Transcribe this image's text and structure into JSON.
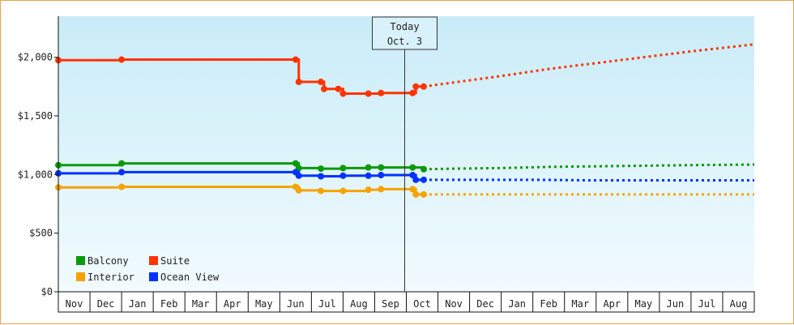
{
  "chart_data": {
    "type": "line",
    "title": "",
    "xlabel": "",
    "ylabel": "",
    "ylim": [
      0,
      2350
    ],
    "y_ticks": [
      0,
      500,
      1000,
      1500,
      2000
    ],
    "y_tick_labels": [
      "$0",
      "$500",
      "$1,000",
      "$1,500",
      "$2,000"
    ],
    "month_labels": [
      "Nov",
      "Dec",
      "Jan",
      "Feb",
      "Mar",
      "Apr",
      "May",
      "Jun",
      "Jul",
      "Aug",
      "Sep",
      "Oct",
      "Nov",
      "Dec",
      "Jan",
      "Feb",
      "Mar",
      "Apr",
      "May",
      "Jun",
      "Jul",
      "Aug"
    ],
    "grid": false,
    "legend_position": "bottom-left",
    "today_marker": {
      "line1": "Today",
      "line2": "Oct. 3",
      "month_index": 11
    },
    "series": [
      {
        "name": "Balcony",
        "color": "#0a9a0a",
        "points": [
          [
            0,
            1080
          ],
          [
            2,
            1095
          ],
          [
            7.5,
            1095
          ],
          [
            7.6,
            1055
          ],
          [
            8.3,
            1050
          ],
          [
            9,
            1055
          ],
          [
            9.8,
            1060
          ],
          [
            10.2,
            1060
          ],
          [
            11.2,
            1060
          ],
          [
            11.55,
            1045
          ]
        ],
        "forecast": [
          [
            11.55,
            1045
          ],
          [
            12.5,
            1050
          ],
          [
            14,
            1055
          ],
          [
            15.5,
            1065
          ],
          [
            17,
            1070
          ],
          [
            18.5,
            1075
          ],
          [
            20,
            1080
          ],
          [
            22,
            1085
          ]
        ]
      },
      {
        "name": "Suite",
        "color": "#ff3300",
        "points": [
          [
            0,
            1975
          ],
          [
            2,
            1980
          ],
          [
            7.5,
            1980
          ],
          [
            7.6,
            1790
          ],
          [
            8.3,
            1790
          ],
          [
            8.4,
            1730
          ],
          [
            8.85,
            1730
          ],
          [
            9,
            1690
          ],
          [
            9.8,
            1690
          ],
          [
            10.2,
            1695
          ],
          [
            11.2,
            1695
          ],
          [
            11.3,
            1750
          ],
          [
            11.55,
            1750
          ]
        ],
        "forecast": [
          [
            11.55,
            1750
          ],
          [
            12.5,
            1785
          ],
          [
            14,
            1840
          ],
          [
            15.5,
            1900
          ],
          [
            17,
            1950
          ],
          [
            18.5,
            2000
          ],
          [
            20,
            2050
          ],
          [
            22,
            2110
          ]
        ]
      },
      {
        "name": "Interior",
        "color": "#f5a300",
        "points": [
          [
            0,
            890
          ],
          [
            2,
            895
          ],
          [
            7.5,
            895
          ],
          [
            7.6,
            865
          ],
          [
            8.3,
            860
          ],
          [
            9,
            860
          ],
          [
            9.8,
            870
          ],
          [
            10.2,
            875
          ],
          [
            11.2,
            875
          ],
          [
            11.3,
            830
          ],
          [
            11.55,
            830
          ]
        ],
        "forecast": [
          [
            11.55,
            830
          ],
          [
            13,
            830
          ],
          [
            15,
            830
          ],
          [
            17,
            830
          ],
          [
            19,
            830
          ],
          [
            22,
            830
          ]
        ]
      },
      {
        "name": "Ocean View",
        "color": "#0033ff",
        "points": [
          [
            0,
            1010
          ],
          [
            2,
            1020
          ],
          [
            7.5,
            1020
          ],
          [
            7.6,
            990
          ],
          [
            8.3,
            985
          ],
          [
            9,
            990
          ],
          [
            9.8,
            990
          ],
          [
            10.2,
            995
          ],
          [
            11.2,
            995
          ],
          [
            11.3,
            955
          ],
          [
            11.55,
            955
          ]
        ],
        "forecast": [
          [
            11.55,
            955
          ],
          [
            13,
            955
          ],
          [
            15,
            955
          ],
          [
            17,
            950
          ],
          [
            19,
            950
          ],
          [
            22,
            950
          ]
        ]
      }
    ]
  }
}
